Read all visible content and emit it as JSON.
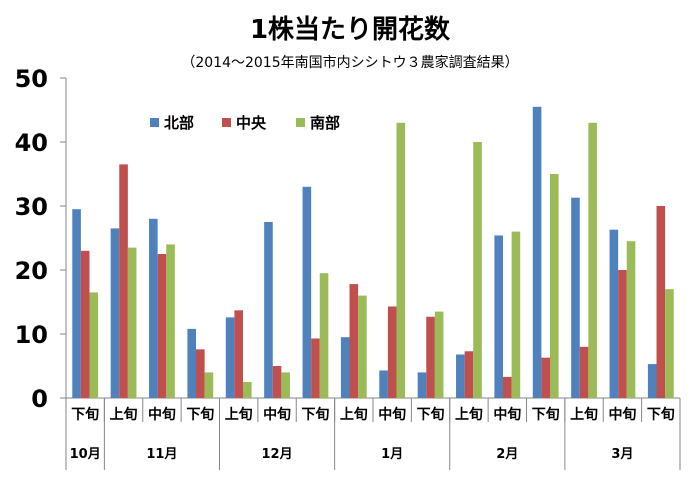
{
  "chart_data": {
    "type": "bar",
    "title": "1株当たり開花数",
    "subtitle": "（2014～2015年南国市内シシトウ３農家調査結果）",
    "ylim": [
      0,
      50
    ],
    "yticks": [
      "0",
      "10",
      "20",
      "30",
      "40",
      "50"
    ],
    "grid": false,
    "legend_position": "top-left inside",
    "categories": [
      "下旬",
      "上旬",
      "中旬",
      "下旬",
      "上旬",
      "中旬",
      "下旬",
      "上旬",
      "中旬",
      "下旬",
      "上旬",
      "中旬",
      "下旬",
      "上旬",
      "中旬",
      "下旬"
    ],
    "month_groups": [
      {
        "label": "10月",
        "count": 1
      },
      {
        "label": "11月",
        "count": 3
      },
      {
        "label": "12月",
        "count": 3
      },
      {
        "label": "1月",
        "count": 3
      },
      {
        "label": "2月",
        "count": 3
      },
      {
        "label": "3月",
        "count": 3
      }
    ],
    "series": [
      {
        "name": "北部",
        "color": "#4F81BD",
        "values": [
          29.5,
          26.5,
          28.0,
          10.8,
          12.6,
          27.5,
          33.0,
          9.5,
          4.3,
          4.0,
          6.8,
          25.4,
          45.5,
          31.3,
          26.3,
          5.3
        ]
      },
      {
        "name": "中央",
        "color": "#C0504D",
        "values": [
          23.0,
          36.5,
          22.5,
          7.6,
          13.7,
          5.0,
          9.3,
          17.8,
          14.3,
          12.7,
          7.3,
          3.3,
          6.3,
          8.0,
          20.0,
          30.0
        ]
      },
      {
        "name": "南部",
        "color": "#9BBB59",
        "values": [
          16.5,
          23.5,
          24.0,
          4.0,
          2.5,
          4.0,
          19.5,
          16.0,
          43.0,
          13.5,
          40.0,
          26.0,
          35.0,
          43.0,
          24.5,
          17.0
        ]
      }
    ]
  }
}
